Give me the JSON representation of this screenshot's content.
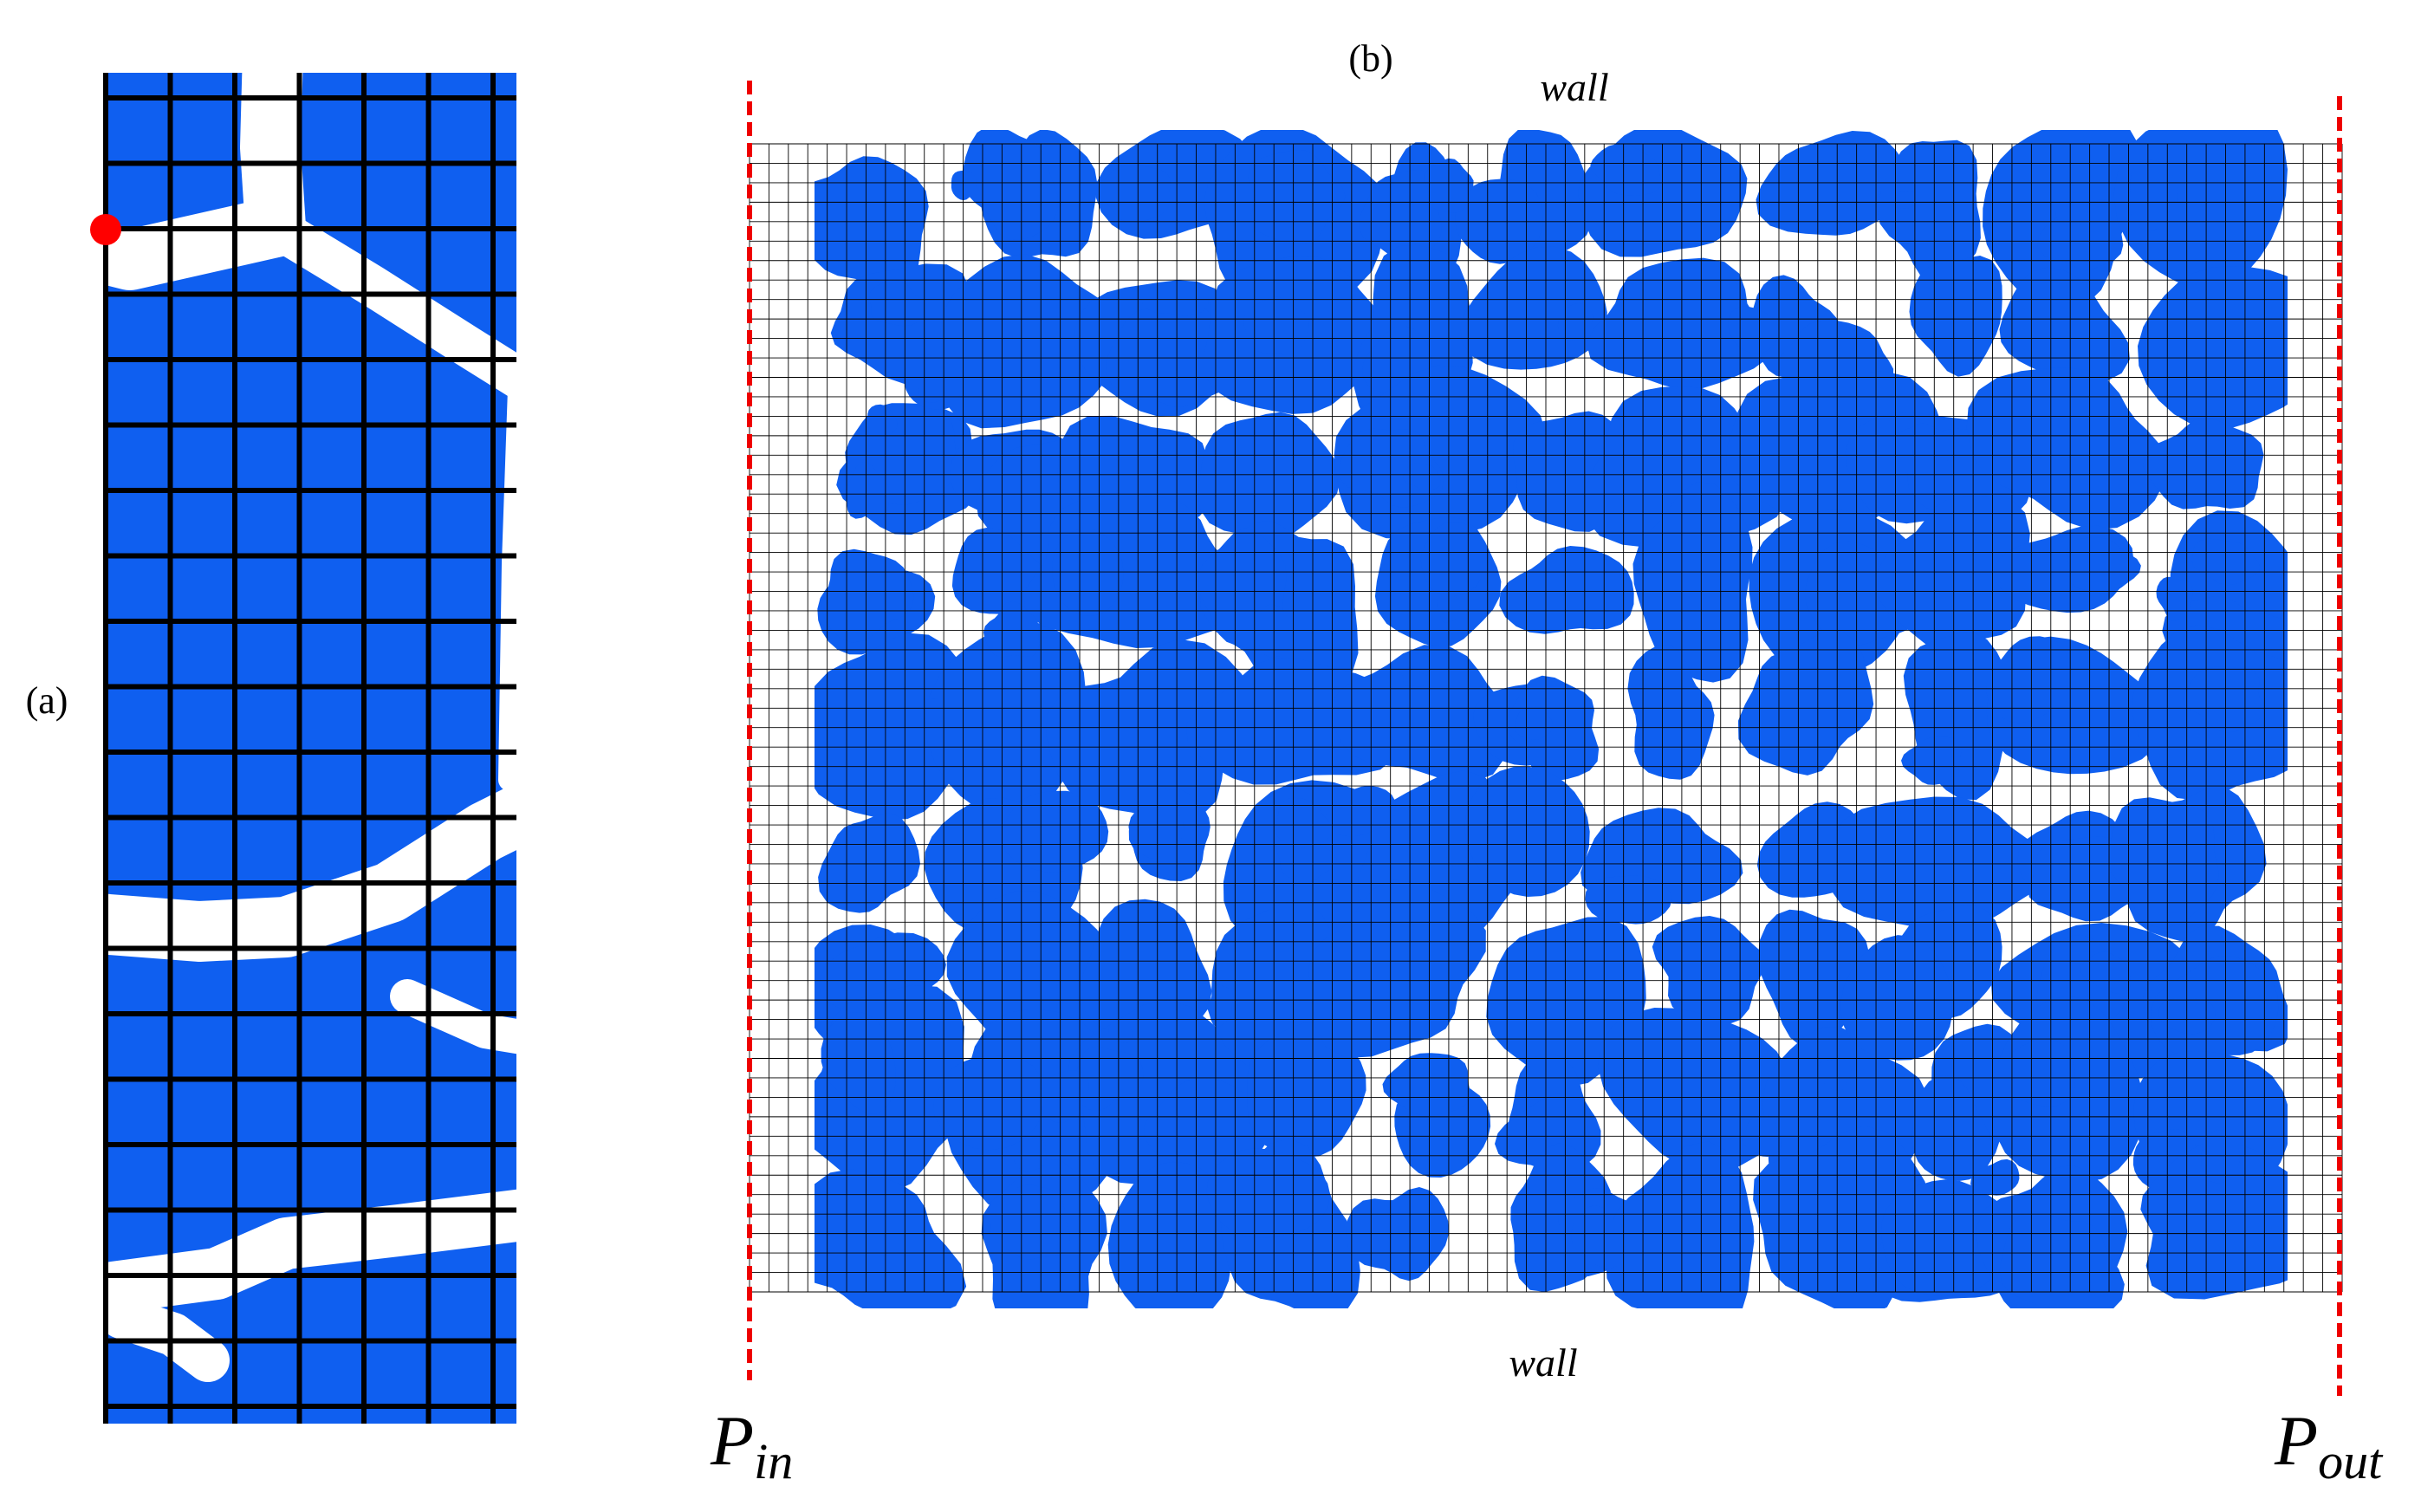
{
  "panel_a": {
    "label": "(a)"
  },
  "panel_b": {
    "label": "(b)",
    "top_boundary": "wall",
    "bottom_boundary": "wall",
    "inlet": {
      "symbol": "P",
      "subscript": "in"
    },
    "outlet": {
      "symbol": "P",
      "subscript": "out"
    }
  }
}
